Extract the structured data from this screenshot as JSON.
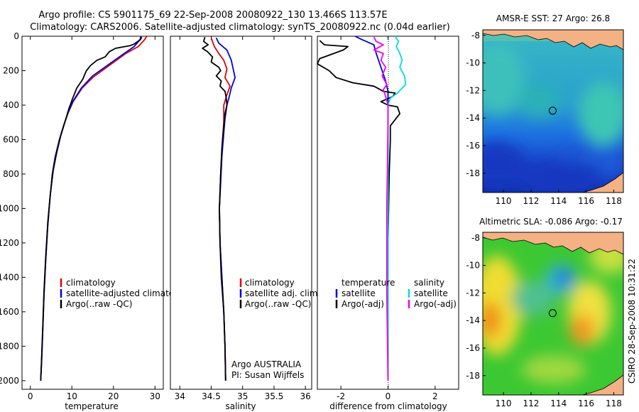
{
  "title": {
    "line1": "Argo profile: CS 5901175_69 22-Sep-2008 20080922_130 13.466S 113.57E",
    "line2": "Climatology: CARS2006. Satellite-adjusted climatology: synTS_20080922.nc (0.04d earlier)"
  },
  "side_label": "CSIRO 28-Sep-2008 10:31:22",
  "colors": {
    "climatology": "#e00000",
    "satellite": "#0000e0",
    "argo": "#000000",
    "cyan": "#00dddd",
    "magenta": "#ee00ee",
    "land": "#f4b183"
  },
  "chart_data": [
    {
      "type": "line",
      "id": "temperature-panel",
      "xlabel": "temperature",
      "ylabel": "",
      "xlim": [
        -2,
        32
      ],
      "ylim": [
        2050,
        0
      ],
      "xticks": [
        0,
        10,
        20,
        30
      ],
      "yticks": [
        0,
        200,
        400,
        600,
        800,
        1000,
        1200,
        1400,
        1600,
        1800,
        2000
      ],
      "legend": [
        "climatology",
        "satellite-adjusted climatology",
        "Argo(..raw -QC)"
      ],
      "series": [
        {
          "name": "climatology",
          "color": "#e00000",
          "points": [
            [
              28,
              0
            ],
            [
              27.5,
              20
            ],
            [
              26,
              60
            ],
            [
              23,
              100
            ],
            [
              19,
              170
            ],
            [
              15,
              240
            ],
            [
              12.5,
              300
            ],
            [
              10.3,
              380
            ],
            [
              9,
              450
            ],
            [
              8,
              520
            ],
            [
              7,
              600
            ],
            [
              6,
              700
            ],
            [
              5.3,
              800
            ],
            [
              4.7,
              950
            ],
            [
              4.2,
              1100
            ],
            [
              3.7,
              1300
            ],
            [
              3.3,
              1500
            ],
            [
              3,
              1700
            ],
            [
              2.7,
              1900
            ],
            [
              2.5,
              2000
            ]
          ]
        },
        {
          "name": "satellite-adjusted climatology",
          "color": "#0000e0",
          "points": [
            [
              26.6,
              0
            ],
            [
              26.4,
              20
            ],
            [
              25,
              60
            ],
            [
              22,
              110
            ],
            [
              18.5,
              170
            ],
            [
              15,
              230
            ],
            [
              12.3,
              300
            ],
            [
              10.2,
              380
            ],
            [
              9,
              450
            ],
            [
              8,
              520
            ],
            [
              7,
              600
            ],
            [
              6,
              700
            ],
            [
              5.3,
              800
            ],
            [
              4.7,
              950
            ],
            [
              4.2,
              1100
            ],
            [
              3.7,
              1300
            ],
            [
              3.3,
              1500
            ],
            [
              3,
              1700
            ],
            [
              2.7,
              1900
            ],
            [
              2.5,
              2000
            ]
          ]
        },
        {
          "name": "Argo(..raw -QC)",
          "color": "#000000",
          "points": [
            [
              26.8,
              5
            ],
            [
              26.5,
              20
            ],
            [
              25,
              45
            ],
            [
              24,
              55
            ],
            [
              20.5,
              70
            ],
            [
              19,
              90
            ],
            [
              18,
              120
            ],
            [
              16,
              140
            ],
            [
              14.5,
              170
            ],
            [
              13.5,
              200
            ],
            [
              12.6,
              250
            ],
            [
              11.2,
              300
            ],
            [
              10.2,
              360
            ],
            [
              9.3,
              420
            ],
            [
              8.3,
              500
            ],
            [
              7.3,
              580
            ],
            [
              6.3,
              680
            ],
            [
              5.5,
              780
            ],
            [
              4.8,
              920
            ],
            [
              4.2,
              1080
            ],
            [
              3.7,
              1280
            ],
            [
              3.3,
              1480
            ],
            [
              3,
              1680
            ],
            [
              2.7,
              1880
            ],
            [
              2.5,
              2000
            ]
          ]
        }
      ]
    },
    {
      "type": "line",
      "id": "salinity-panel",
      "xlabel": "salinity",
      "ylabel": "",
      "xlim": [
        33.85,
        36.1
      ],
      "ylim": [
        2050,
        0
      ],
      "xticks": [
        34,
        34.5,
        35,
        35.5,
        36
      ],
      "yticks": [],
      "legend": [
        "climatology",
        "satellite adj. clim.",
        "Argo(..raw -QC)"
      ],
      "annotation": [
        "Argo AUSTRALIA",
        "PI: Susan Wijffels"
      ],
      "series": [
        {
          "name": "climatology",
          "color": "#e00000",
          "points": [
            [
              34.5,
              10
            ],
            [
              34.55,
              60
            ],
            [
              34.62,
              100
            ],
            [
              34.7,
              140
            ],
            [
              34.75,
              190
            ],
            [
              34.72,
              240
            ],
            [
              34.8,
              290
            ],
            [
              34.75,
              340
            ],
            [
              34.7,
              400
            ],
            [
              34.7,
              500
            ],
            [
              34.68,
              600
            ],
            [
              34.65,
              800
            ],
            [
              34.63,
              1000
            ],
            [
              34.64,
              1200
            ],
            [
              34.67,
              1400
            ],
            [
              34.7,
              1600
            ],
            [
              34.72,
              1800
            ],
            [
              34.73,
              2000
            ]
          ]
        },
        {
          "name": "satellite adj. clim.",
          "color": "#0000e0",
          "points": [
            [
              34.58,
              10
            ],
            [
              34.62,
              40
            ],
            [
              34.75,
              80
            ],
            [
              34.82,
              140
            ],
            [
              34.85,
              190
            ],
            [
              34.88,
              240
            ],
            [
              34.82,
              300
            ],
            [
              34.78,
              360
            ],
            [
              34.75,
              400
            ],
            [
              34.72,
              480
            ],
            [
              34.7,
              560
            ],
            [
              34.67,
              700
            ],
            [
              34.65,
              850
            ],
            [
              34.63,
              1000
            ],
            [
              34.64,
              1200
            ],
            [
              34.66,
              1400
            ],
            [
              34.7,
              1600
            ],
            [
              34.72,
              1800
            ],
            [
              34.73,
              2000
            ]
          ]
        },
        {
          "name": "Argo(..raw -QC)",
          "color": "#000000",
          "points": [
            [
              34.4,
              5
            ],
            [
              34.38,
              30
            ],
            [
              34.45,
              50
            ],
            [
              34.36,
              70
            ],
            [
              34.44,
              90
            ],
            [
              34.52,
              120
            ],
            [
              34.5,
              150
            ],
            [
              34.62,
              180
            ],
            [
              34.65,
              200
            ],
            [
              34.58,
              230
            ],
            [
              34.66,
              260
            ],
            [
              34.64,
              290
            ],
            [
              34.72,
              320
            ],
            [
              34.74,
              360
            ],
            [
              34.75,
              400
            ],
            [
              34.72,
              450
            ],
            [
              34.7,
              520
            ],
            [
              34.67,
              650
            ],
            [
              34.65,
              800
            ],
            [
              34.63,
              1000
            ],
            [
              34.64,
              1200
            ],
            [
              34.67,
              1400
            ],
            [
              34.7,
              1600
            ],
            [
              34.72,
              1800
            ],
            [
              34.73,
              2000
            ]
          ]
        }
      ]
    },
    {
      "type": "line",
      "id": "difference-panel",
      "xlabel": "difference from climatology",
      "ylabel": "",
      "xlim": [
        -3,
        3
      ],
      "ylim": [
        2050,
        0
      ],
      "xticks": [
        -2,
        0,
        2
      ],
      "yticks": [],
      "legend_left_title": "temperature",
      "legend_left": [
        "satellite",
        "Argo(-adj)"
      ],
      "legend_right_title": "salinity",
      "legend_right": [
        "satellite",
        "Argo(-adj)"
      ],
      "series": [
        {
          "name": "temperature satellite",
          "color": "#0000e0",
          "points": [
            [
              -1.4,
              0
            ],
            [
              -1.1,
              20
            ],
            [
              -0.6,
              50
            ],
            [
              -0.5,
              100
            ],
            [
              -0.3,
              180
            ],
            [
              -0.1,
              260
            ],
            [
              0,
              320
            ],
            [
              0,
              400
            ],
            [
              0,
              600
            ],
            [
              0,
              1000
            ],
            [
              0,
              1500
            ],
            [
              0,
              2000
            ]
          ]
        },
        {
          "name": "temperature Argo(-adj)",
          "color": "#000000",
          "points": [
            [
              -2.9,
              25
            ],
            [
              -2.7,
              50
            ],
            [
              -1.7,
              60
            ],
            [
              -1.9,
              80
            ],
            [
              -2.9,
              130
            ],
            [
              -3,
              160
            ],
            [
              -2.5,
              200
            ],
            [
              -2.2,
              240
            ],
            [
              -1.5,
              270
            ],
            [
              -0.6,
              290
            ],
            [
              -0.2,
              320
            ],
            [
              0.3,
              330
            ],
            [
              0.2,
              350
            ],
            [
              -0.3,
              380
            ],
            [
              0,
              400
            ],
            [
              0.4,
              410
            ],
            [
              0.5,
              450
            ],
            [
              0.1,
              520
            ],
            [
              0.1,
              600
            ],
            [
              0.05,
              800
            ],
            [
              0,
              1200
            ],
            [
              0,
              2000
            ]
          ]
        },
        {
          "name": "salinity satellite",
          "color": "#00dddd",
          "points": [
            [
              0.3,
              0
            ],
            [
              0.45,
              30
            ],
            [
              0.35,
              60
            ],
            [
              0.5,
              100
            ],
            [
              0.6,
              140
            ],
            [
              0.5,
              180
            ],
            [
              0.7,
              230
            ],
            [
              0.75,
              280
            ],
            [
              0.4,
              330
            ],
            [
              0.1,
              360
            ],
            [
              0,
              400
            ],
            [
              0,
              500
            ],
            [
              0,
              600
            ],
            [
              0,
              1000
            ],
            [
              0,
              2000
            ]
          ]
        },
        {
          "name": "salinity Argo(-adj)",
          "color": "#ee00ee",
          "points": [
            [
              -0.6,
              5
            ],
            [
              -0.5,
              30
            ],
            [
              -0.2,
              50
            ],
            [
              -0.6,
              80
            ],
            [
              -0.2,
              100
            ],
            [
              -0.3,
              140
            ],
            [
              -0.1,
              180
            ],
            [
              -0.25,
              230
            ],
            [
              -0.05,
              280
            ],
            [
              -0.2,
              310
            ],
            [
              -0.1,
              350
            ],
            [
              0,
              400
            ],
            [
              0,
              500
            ],
            [
              -0.05,
              1000
            ],
            [
              -0.05,
              1500
            ],
            [
              0,
              2000
            ]
          ]
        }
      ]
    },
    {
      "type": "heatmap",
      "id": "sst-map",
      "title": "AMSR-E SST: 27 Argo: 26.8",
      "xlabel": "",
      "ylabel": "",
      "xlim": [
        108.5,
        118.7
      ],
      "ylim": [
        -19.4,
        -7.6
      ],
      "xticks": [
        110,
        112,
        114,
        116,
        118
      ],
      "yticks": [
        -8,
        -10,
        -12,
        -14,
        -16,
        -18
      ],
      "argo_position": [
        113.57,
        -13.466
      ]
    },
    {
      "type": "heatmap",
      "id": "sla-map",
      "title": "Altimetric SLA: -0.086 Argo: -0.17",
      "xlabel": "",
      "ylabel": "",
      "xlim": [
        108.5,
        118.7
      ],
      "ylim": [
        -19.4,
        -7.6
      ],
      "xticks": [
        110,
        112,
        114,
        116,
        118
      ],
      "yticks": [
        -8,
        -10,
        -12,
        -14,
        -16,
        -18
      ],
      "argo_position": [
        113.57,
        -13.466
      ]
    }
  ]
}
